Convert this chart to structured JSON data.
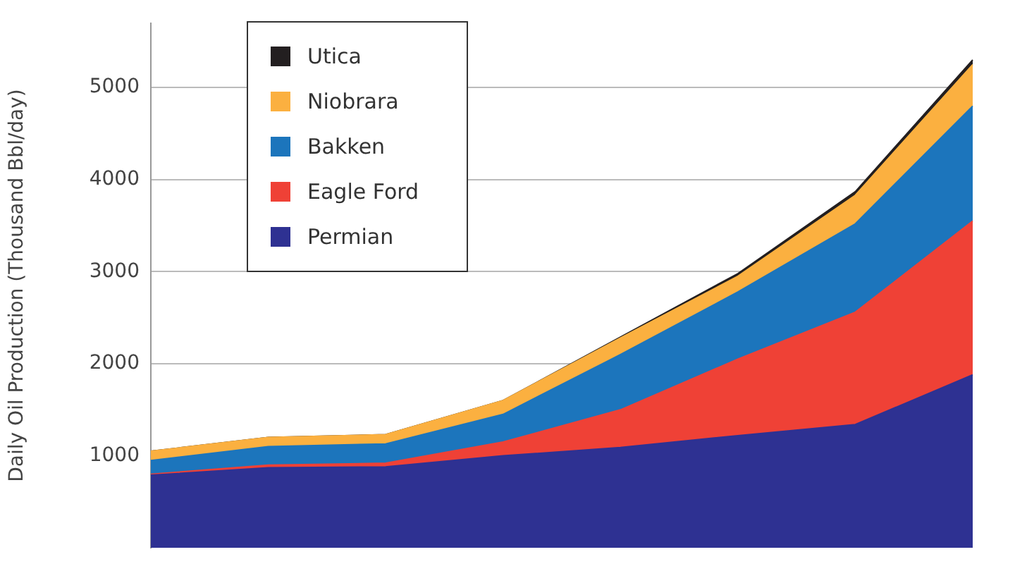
{
  "chart_data": {
    "type": "area",
    "stacked": true,
    "ylabel": "Daily Oil Production (Thousand Bbl/day)",
    "categories": [
      null,
      null,
      null,
      null,
      null,
      null,
      null,
      null
    ],
    "series": [
      {
        "name": "Permian",
        "color": "#2e3192",
        "values": [
          790,
          870,
          880,
          1000,
          1090,
          1220,
          1340,
          1880
        ]
      },
      {
        "name": "Eagle Ford",
        "color": "#ef4136",
        "values": [
          10,
          30,
          40,
          150,
          410,
          830,
          1220,
          1670
        ]
      },
      {
        "name": "Bakken",
        "color": "#1c75bc",
        "values": [
          150,
          200,
          210,
          300,
          600,
          730,
          960,
          1250
        ]
      },
      {
        "name": "Niobrara",
        "color": "#fbb040",
        "values": [
          100,
          100,
          100,
          150,
          180,
          170,
          310,
          450
        ]
      },
      {
        "name": "Utica",
        "color": "#231f20",
        "values": [
          0,
          0,
          0,
          0,
          10,
          30,
          40,
          50
        ]
      }
    ],
    "ylim": [
      0,
      5700
    ],
    "yticks": [
      {
        "value": 1000,
        "label": "1000"
      },
      {
        "value": 2000,
        "label": "2000"
      },
      {
        "value": 3000,
        "label": "3000"
      },
      {
        "value": 4000,
        "label": "4000"
      },
      {
        "value": 5000,
        "label": "5000"
      }
    ],
    "grid": "y",
    "legend": "top left",
    "tick_labels": "y"
  }
}
